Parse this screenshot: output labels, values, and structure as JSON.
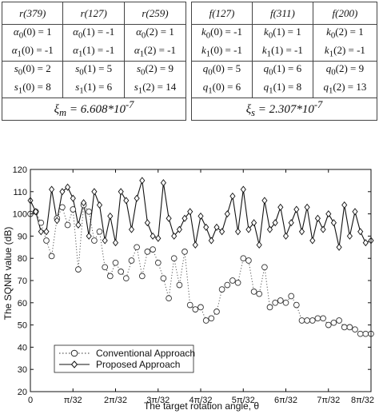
{
  "table_left": {
    "headers": [
      "r(379)",
      "r(127)",
      "r(259)"
    ],
    "alpha_rows": [
      [
        "α0(0) = 1",
        "α0(1) = -1",
        "α0(2) = 1"
      ],
      [
        "α1(0) = -1",
        "α1(1) = -1",
        "α1(2) = -1"
      ]
    ],
    "s_rows": [
      [
        "s0(0) = 2",
        "s0(1) = 5",
        "s0(2) = 9"
      ],
      [
        "s1(0) = 8",
        "s1(1) = 6",
        "s1(2) = 14"
      ]
    ],
    "footer": "ξm = 6.608*10-7"
  },
  "table_right": {
    "headers": [
      "f(127)",
      "f(311)",
      "f(200)"
    ],
    "k_rows": [
      [
        "k0(0) = -1",
        "k0(1) = 1",
        "k0(2) = 1"
      ],
      [
        "k1(0) = -1",
        "k1(1) = -1",
        "k1(2) = -1"
      ]
    ],
    "q_rows": [
      [
        "q0(0) = 5",
        "q0(1) = 6",
        "q0(2) = 9"
      ],
      [
        "q1(0) = 6",
        "q1(1) = 8",
        "q1(2) = 13"
      ]
    ],
    "footer": "ξs = 2.307*10-7"
  },
  "chart_data": {
    "type": "line",
    "xlabel": "The target rotation angle, θ",
    "ylabel": "The SQNR value (dB)",
    "xlim": [
      0,
      64
    ],
    "ylim": [
      20,
      120
    ],
    "yticks": [
      20,
      30,
      40,
      50,
      60,
      70,
      80,
      90,
      100,
      110,
      120
    ],
    "xticks": [
      0,
      8,
      16,
      24,
      32,
      40,
      48,
      56,
      64
    ],
    "xtick_labels": [
      "0",
      "π/32",
      "2π/32",
      "3π/32",
      "4π/32",
      "5π/32",
      "6π/32",
      "7π/32",
      "8π/32"
    ],
    "grid": false,
    "legend_position": "bottom-left",
    "series": [
      {
        "name": "Conventional Approach",
        "marker": "circle",
        "line_style": "dotted",
        "x": [
          0,
          1,
          2,
          3,
          4,
          5,
          6,
          7,
          8,
          9,
          10,
          11,
          12,
          13,
          14,
          15,
          16,
          17,
          18,
          19,
          20,
          21,
          22,
          23,
          24,
          25,
          26,
          27,
          28,
          29,
          30,
          31,
          32,
          33,
          34,
          35,
          36,
          37,
          38,
          39,
          40,
          41,
          42,
          43,
          44,
          45,
          46,
          47,
          48,
          49,
          50,
          51,
          52,
          53,
          54,
          55,
          56,
          57,
          58,
          59,
          60,
          61,
          62,
          63,
          64
        ],
        "values": [
          100,
          101,
          96,
          88,
          81,
          98,
          103,
          95,
          102,
          75,
          104,
          101,
          88,
          92,
          76,
          72,
          78,
          74,
          71,
          79,
          85,
          72,
          83,
          84,
          78,
          71,
          62,
          80,
          68,
          83,
          59,
          57,
          58,
          52,
          53,
          56,
          66,
          68,
          70,
          69,
          80,
          79,
          65,
          64,
          76,
          58,
          60,
          61,
          60,
          63,
          59,
          52,
          52,
          52,
          53,
          53,
          50,
          51,
          52,
          49,
          49,
          48,
          46,
          46,
          46
        ]
      },
      {
        "name": "Proposed Approach",
        "marker": "diamond",
        "line_style": "solid",
        "x": [
          0,
          1,
          2,
          3,
          4,
          5,
          6,
          7,
          8,
          9,
          10,
          11,
          12,
          13,
          14,
          15,
          16,
          17,
          18,
          19,
          20,
          21,
          22,
          23,
          24,
          25,
          26,
          27,
          28,
          29,
          30,
          31,
          32,
          33,
          34,
          35,
          36,
          37,
          38,
          39,
          40,
          41,
          42,
          43,
          44,
          45,
          46,
          47,
          48,
          49,
          50,
          51,
          52,
          53,
          54,
          55,
          56,
          57,
          58,
          59,
          60,
          61,
          62,
          63,
          64
        ],
        "values": [
          106,
          101,
          92,
          92,
          111,
          97,
          110,
          112,
          107,
          95,
          105,
          90,
          110,
          104,
          88,
          99,
          87,
          110,
          106,
          93,
          107,
          115,
          96,
          90,
          89,
          114,
          98,
          90,
          93,
          98,
          101,
          86,
          99,
          94,
          88,
          94,
          92,
          100,
          108,
          92,
          111,
          93,
          96,
          86,
          106,
          93,
          96,
          103,
          90,
          96,
          102,
          92,
          103,
          88,
          98,
          93,
          100,
          96,
          85,
          104,
          90,
          101,
          92,
          87,
          88
        ]
      }
    ]
  }
}
